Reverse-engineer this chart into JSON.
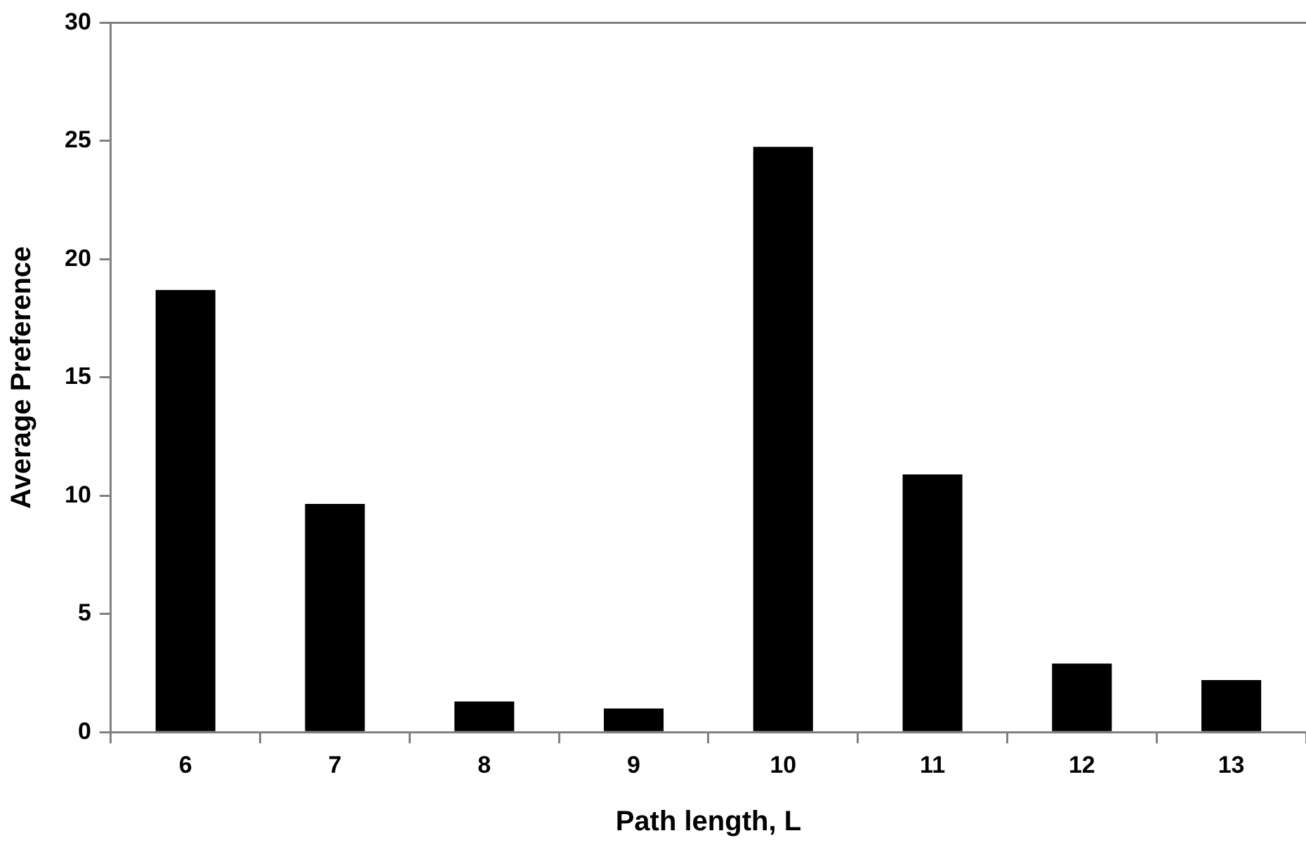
{
  "chart_data": {
    "type": "bar",
    "xlabel": "Path length, L",
    "ylabel": "Average Preference",
    "categories": [
      "6",
      "7",
      "8",
      "9",
      "10",
      "11",
      "12",
      "13"
    ],
    "values": [
      18.7,
      9.65,
      1.3,
      1.0,
      24.75,
      10.9,
      2.9,
      2.2
    ],
    "color": "#000000",
    "ylim": [
      0,
      30
    ],
    "yticks": [
      0,
      5,
      10,
      15,
      20,
      25,
      30
    ],
    "grid": false
  }
}
